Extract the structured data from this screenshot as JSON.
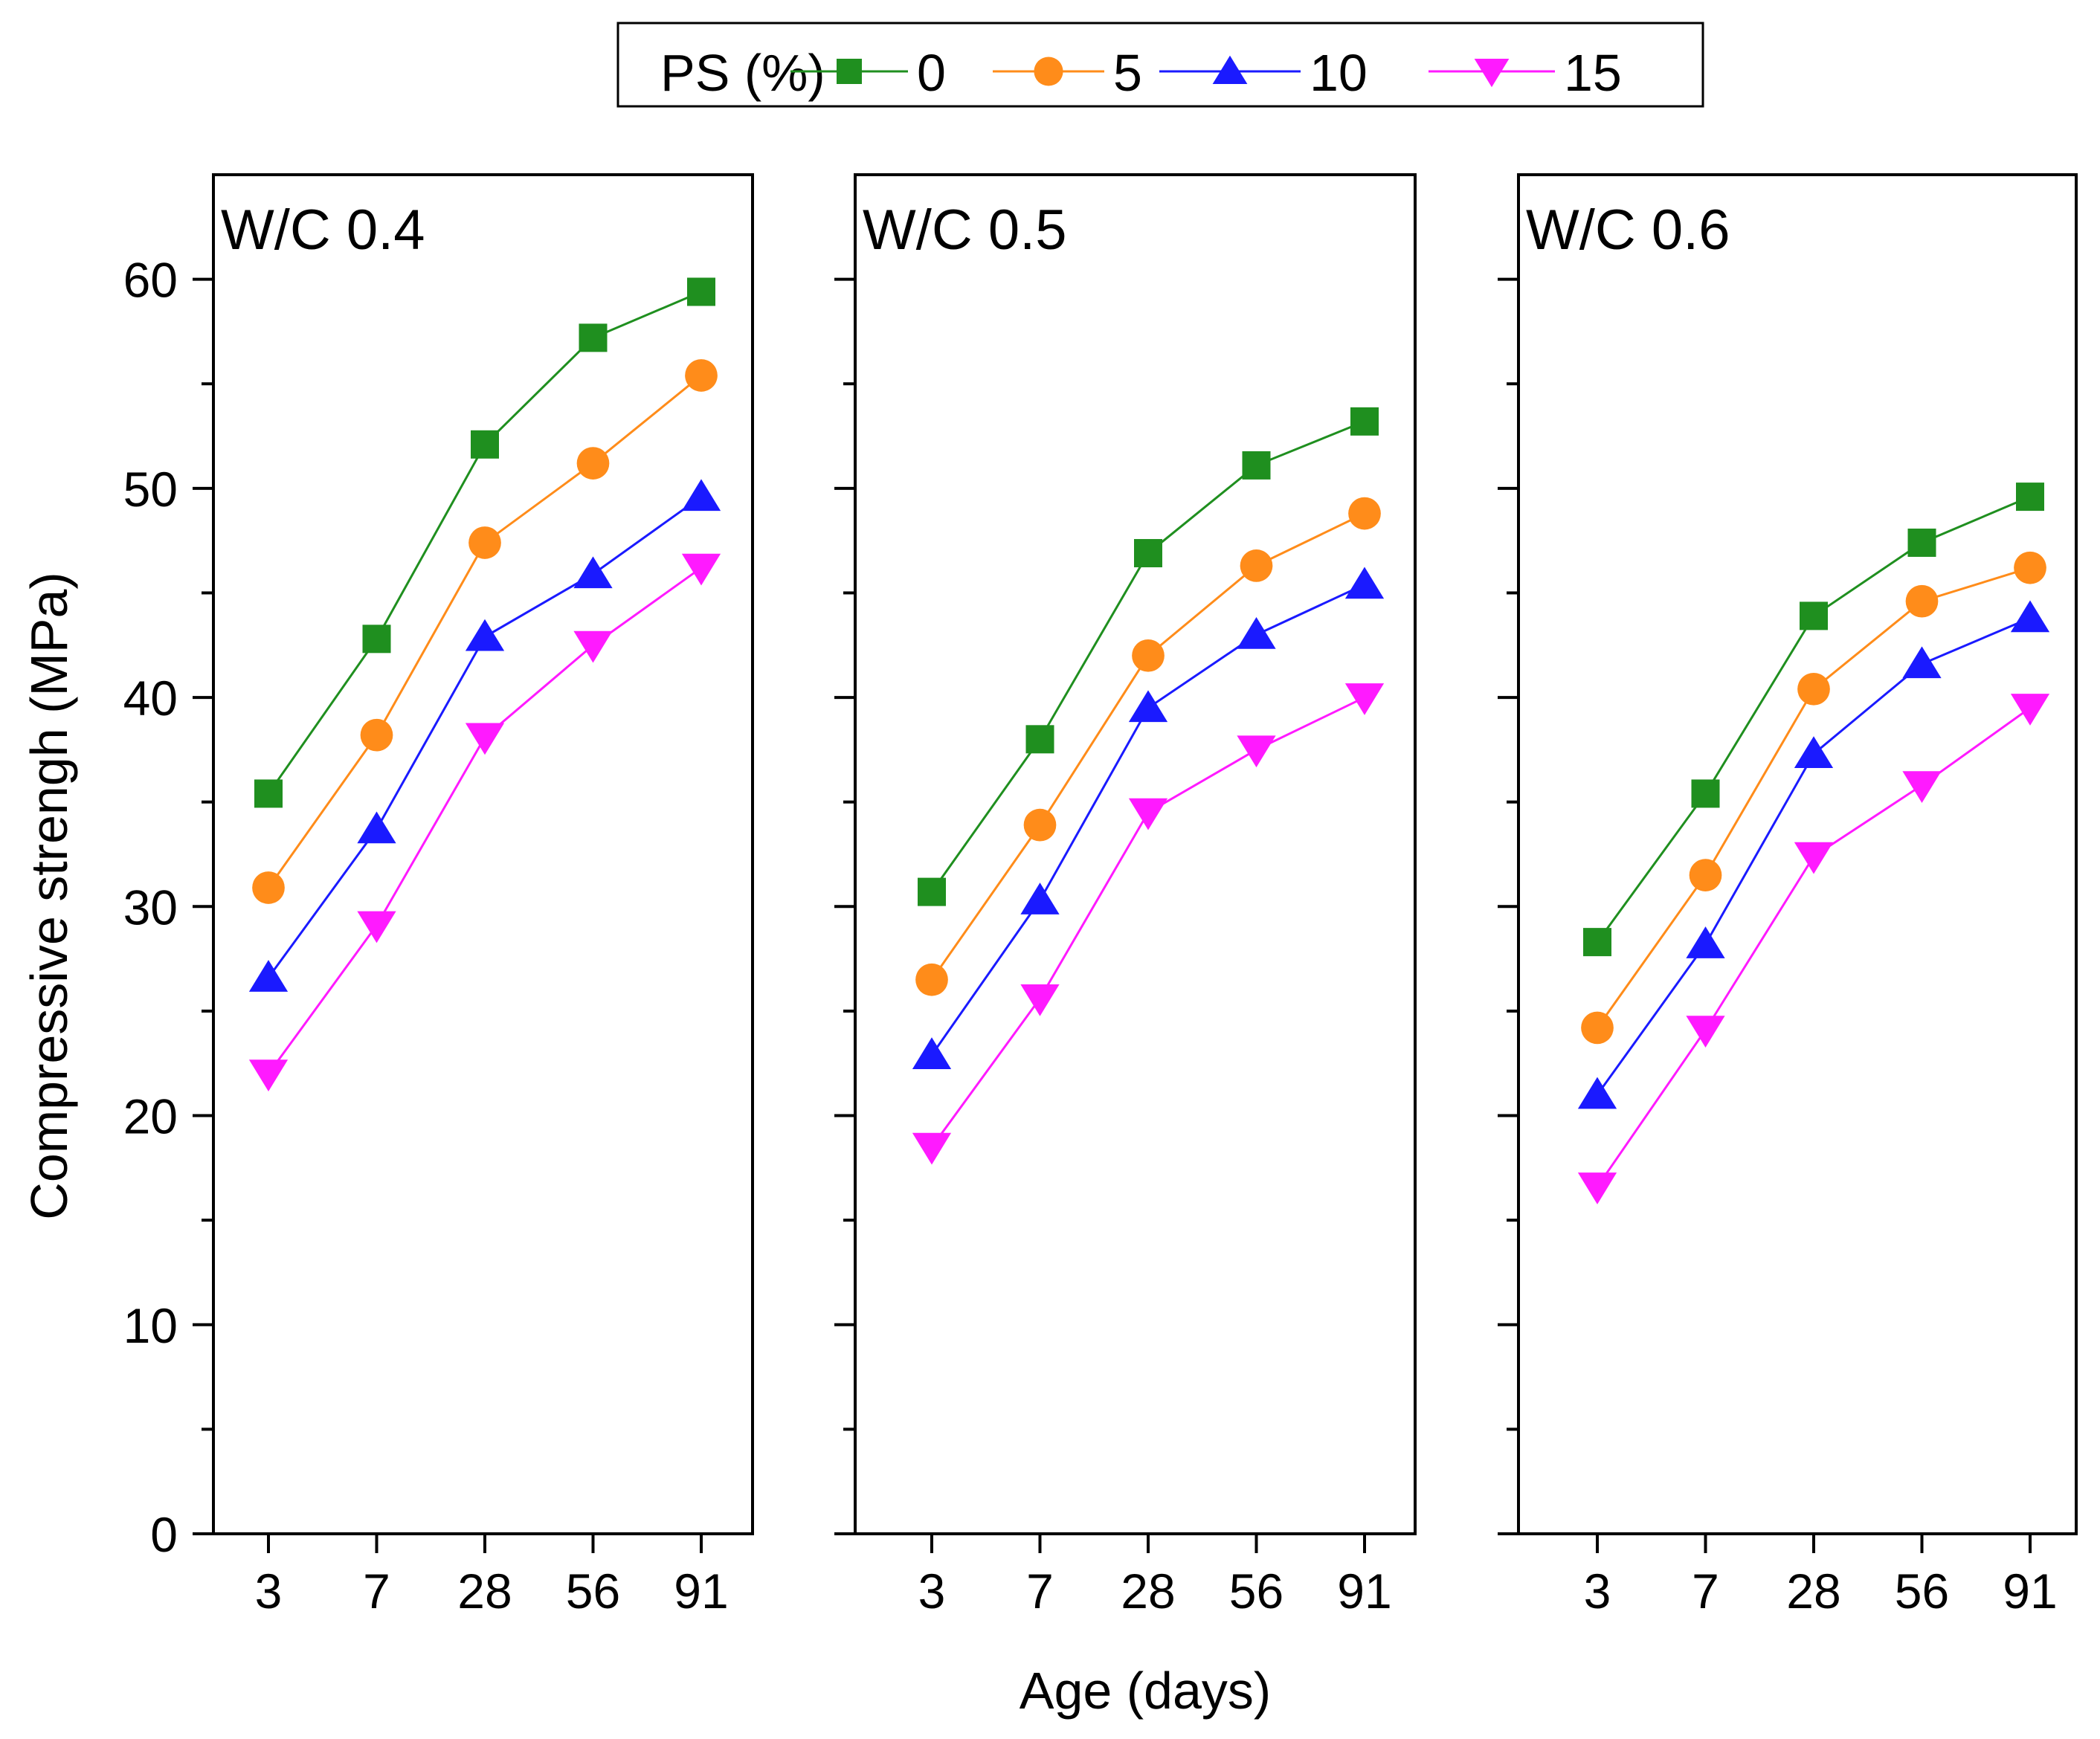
{
  "legend": {
    "title": "PS (%)",
    "entries": [
      {
        "label": "0",
        "color": "#1f8f1f",
        "marker": "square"
      },
      {
        "label": "5",
        "color": "#ff8c1a",
        "marker": "circle"
      },
      {
        "label": "10",
        "color": "#1a1aff",
        "marker": "triangle-up"
      },
      {
        "label": "15",
        "color": "#ff1aff",
        "marker": "triangle-down"
      }
    ]
  },
  "axes": {
    "ylabel": "Compressive strengh (MPa)",
    "xlabel": "Age (days)",
    "yticks": [
      "0",
      "10",
      "20",
      "30",
      "40",
      "50",
      "60"
    ]
  },
  "chart_data": [
    {
      "type": "line",
      "title": "W/C 0.4",
      "categories": [
        "3",
        "7",
        "28",
        "56",
        "91"
      ],
      "xlabel": "Age (days)",
      "ylabel": "Compressive strengh (MPa)",
      "ylim": [
        0,
        65
      ],
      "series": [
        {
          "name": "0",
          "values": [
            35.4,
            42.8,
            52.1,
            57.2,
            59.4
          ]
        },
        {
          "name": "5",
          "values": [
            30.9,
            38.2,
            47.4,
            51.2,
            55.4
          ]
        },
        {
          "name": "10",
          "values": [
            26.6,
            33.7,
            42.9,
            45.9,
            49.6
          ]
        },
        {
          "name": "15",
          "values": [
            22.0,
            29.1,
            38.1,
            42.5,
            46.2
          ]
        }
      ]
    },
    {
      "type": "line",
      "title": "W/C 0.5",
      "categories": [
        "3",
        "7",
        "28",
        "56",
        "91"
      ],
      "xlabel": "Age (days)",
      "ylabel": "Compressive strengh (MPa)",
      "ylim": [
        0,
        65
      ],
      "series": [
        {
          "name": "0",
          "values": [
            30.7,
            38.0,
            46.9,
            51.1,
            53.2
          ]
        },
        {
          "name": "5",
          "values": [
            26.5,
            33.9,
            42.0,
            46.3,
            48.8
          ]
        },
        {
          "name": "10",
          "values": [
            22.9,
            30.3,
            39.5,
            43.0,
            45.4
          ]
        },
        {
          "name": "15",
          "values": [
            18.5,
            25.6,
            34.5,
            37.5,
            40.0
          ]
        }
      ]
    },
    {
      "type": "line",
      "title": "W/C 0.6",
      "categories": [
        "3",
        "7",
        "28",
        "56",
        "91"
      ],
      "xlabel": "Age (days)",
      "ylabel": "Compressive strengh (MPa)",
      "ylim": [
        0,
        65
      ],
      "series": [
        {
          "name": "0",
          "values": [
            28.3,
            35.4,
            43.9,
            47.4,
            49.6
          ]
        },
        {
          "name": "5",
          "values": [
            24.2,
            31.5,
            40.4,
            44.6,
            46.2
          ]
        },
        {
          "name": "10",
          "values": [
            21.0,
            28.2,
            37.3,
            41.6,
            43.8
          ]
        },
        {
          "name": "15",
          "values": [
            16.6,
            24.1,
            32.4,
            35.8,
            39.5
          ]
        }
      ]
    }
  ]
}
